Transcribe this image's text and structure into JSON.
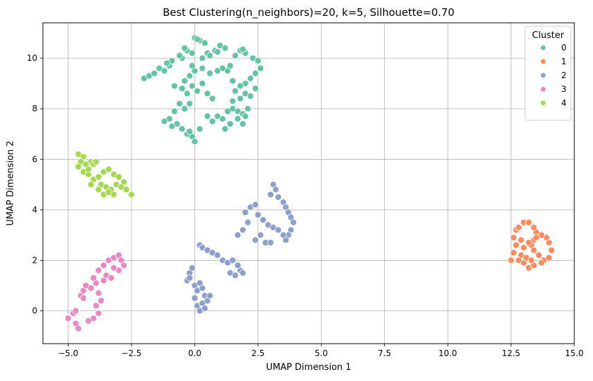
{
  "chart_data": {
    "type": "scatter",
    "title": "Best Clustering(n_neighbors)=20, k=5, Silhouette=0.70",
    "xlabel": "UMAP Dimension 1",
    "ylabel": "UMAP Dimension 2",
    "xlim": [
      -6.0,
      15.0
    ],
    "ylim": [
      -1.3,
      11.4
    ],
    "x_ticks": [
      -5.0,
      -2.5,
      0.0,
      2.5,
      5.0,
      7.5,
      10.0,
      12.5,
      15.0
    ],
    "x_tick_labels": [
      "−5.0",
      "−2.5",
      "0.0",
      "2.5",
      "5.0",
      "7.5",
      "10.0",
      "12.5",
      "15.0"
    ],
    "y_ticks": [
      0,
      2,
      4,
      6,
      8,
      10
    ],
    "y_tick_labels": [
      "0",
      "2",
      "4",
      "6",
      "8",
      "10"
    ],
    "grid": true,
    "legend": {
      "title": "Cluster",
      "placement": "top-right"
    },
    "series": [
      {
        "name": "0",
        "color": "#66c2a5",
        "points": [
          [
            -2.0,
            9.2
          ],
          [
            -1.8,
            9.3
          ],
          [
            -1.6,
            9.4
          ],
          [
            -1.4,
            9.6
          ],
          [
            -1.2,
            9.5
          ],
          [
            -1.0,
            9.7
          ],
          [
            -0.9,
            9.9
          ],
          [
            -1.1,
            9.8
          ],
          [
            -0.5,
            10.0
          ],
          [
            -0.3,
            10.3
          ],
          [
            -0.1,
            10.2
          ],
          [
            0.3,
            10.0
          ],
          [
            0.5,
            10.2
          ],
          [
            -0.4,
            10.4
          ],
          [
            -0.6,
            10.1
          ],
          [
            0.0,
            10.8
          ],
          [
            0.2,
            10.7
          ],
          [
            0.4,
            10.6
          ],
          [
            0.1,
            10.75
          ],
          [
            0.8,
            10.3
          ],
          [
            1.0,
            10.5
          ],
          [
            0.9,
            10.25
          ],
          [
            1.2,
            10.4
          ],
          [
            0.6,
            10.1
          ],
          [
            1.8,
            10.3
          ],
          [
            2.0,
            10.2
          ],
          [
            1.6,
            10.1
          ],
          [
            1.9,
            10.35
          ],
          [
            2.3,
            10.0
          ],
          [
            2.5,
            9.9
          ],
          [
            2.6,
            9.6
          ],
          [
            2.4,
            9.4
          ],
          [
            2.2,
            9.2
          ],
          [
            2.0,
            9.0
          ],
          [
            1.8,
            8.9
          ],
          [
            1.5,
            9.1
          ],
          [
            1.3,
            9.5
          ],
          [
            1.1,
            9.6
          ],
          [
            0.9,
            9.5
          ],
          [
            1.4,
            9.7
          ],
          [
            1.6,
            8.7
          ],
          [
            2.0,
            8.6
          ],
          [
            2.4,
            8.8
          ],
          [
            2.2,
            8.5
          ],
          [
            1.8,
            8.4
          ],
          [
            1.5,
            8.3
          ],
          [
            -0.8,
            8.9
          ],
          [
            -0.5,
            8.8
          ],
          [
            -0.3,
            8.6
          ],
          [
            -0.1,
            8.9
          ],
          [
            -0.4,
            9.1
          ],
          [
            -0.2,
            9.3
          ],
          [
            0.1,
            8.7
          ],
          [
            0.3,
            9.0
          ],
          [
            0.5,
            8.6
          ],
          [
            0.7,
            8.4
          ],
          [
            -0.6,
            8.2
          ],
          [
            -0.4,
            8.0
          ],
          [
            -0.2,
            8.2
          ],
          [
            -0.8,
            7.9
          ],
          [
            -1.0,
            7.6
          ],
          [
            -1.2,
            7.5
          ],
          [
            -0.9,
            7.3
          ],
          [
            -0.7,
            7.4
          ],
          [
            -0.5,
            7.2
          ],
          [
            -0.3,
            7.0
          ],
          [
            -0.1,
            6.9
          ],
          [
            0.0,
            6.7
          ],
          [
            -0.2,
            7.1
          ],
          [
            0.5,
            7.7
          ],
          [
            0.7,
            7.5
          ],
          [
            0.9,
            7.7
          ],
          [
            1.1,
            7.6
          ],
          [
            1.3,
            7.9
          ],
          [
            1.5,
            8.0
          ],
          [
            1.7,
            7.9
          ],
          [
            1.9,
            7.8
          ],
          [
            2.1,
            8.0
          ],
          [
            1.7,
            7.6
          ],
          [
            1.9,
            7.4
          ],
          [
            2.0,
            7.7
          ],
          [
            1.4,
            7.4
          ],
          [
            1.2,
            7.2
          ],
          [
            0.2,
            7.2
          ],
          [
            0.3,
            9.6
          ],
          [
            0.0,
            9.5
          ],
          [
            -0.1,
            9.7
          ],
          [
            0.6,
            9.4
          ]
        ]
      },
      {
        "name": "1",
        "color": "#fc8d62",
        "points": [
          [
            12.5,
            2.0
          ],
          [
            12.6,
            2.3
          ],
          [
            12.7,
            2.6
          ],
          [
            12.6,
            2.9
          ],
          [
            12.7,
            3.2
          ],
          [
            12.8,
            3.3
          ],
          [
            13.0,
            3.5
          ],
          [
            13.2,
            3.5
          ],
          [
            13.4,
            3.3
          ],
          [
            13.5,
            3.1
          ],
          [
            13.4,
            2.8
          ],
          [
            13.3,
            2.6
          ],
          [
            13.4,
            2.4
          ],
          [
            13.6,
            2.2
          ],
          [
            13.8,
            2.0
          ],
          [
            14.0,
            2.1
          ],
          [
            14.1,
            2.4
          ],
          [
            14.0,
            2.7
          ],
          [
            13.9,
            2.9
          ],
          [
            13.7,
            3.0
          ],
          [
            13.5,
            2.9
          ],
          [
            13.2,
            2.7
          ],
          [
            13.0,
            2.5
          ],
          [
            12.9,
            2.2
          ],
          [
            13.0,
            1.9
          ],
          [
            13.2,
            1.7
          ],
          [
            13.4,
            1.8
          ],
          [
            13.1,
            2.1
          ],
          [
            12.8,
            2.0
          ],
          [
            12.9,
            2.8
          ],
          [
            13.3,
            2.0
          ],
          [
            13.7,
            1.9
          ]
        ]
      },
      {
        "name": "2",
        "color": "#8da0cb",
        "points": [
          [
            -0.3,
            1.2
          ],
          [
            -0.2,
            1.5
          ],
          [
            -0.1,
            1.7
          ],
          [
            -0.2,
            1.3
          ],
          [
            0.0,
            1.0
          ],
          [
            0.1,
            0.8
          ],
          [
            0.0,
            0.5
          ],
          [
            0.1,
            0.2
          ],
          [
            0.2,
            0.0
          ],
          [
            0.3,
            0.3
          ],
          [
            0.4,
            0.6
          ],
          [
            0.3,
            0.9
          ],
          [
            0.2,
            1.1
          ],
          [
            0.4,
            0.1
          ],
          [
            0.5,
            0.4
          ],
          [
            0.6,
            0.6
          ],
          [
            0.2,
            2.6
          ],
          [
            0.3,
            2.5
          ],
          [
            0.5,
            2.4
          ],
          [
            0.7,
            2.3
          ],
          [
            0.9,
            2.2
          ],
          [
            1.1,
            2.0
          ],
          [
            1.3,
            1.9
          ],
          [
            1.5,
            2.0
          ],
          [
            1.4,
            1.5
          ],
          [
            1.6,
            1.4
          ],
          [
            1.8,
            1.6
          ],
          [
            1.7,
            1.8
          ],
          [
            1.9,
            1.5
          ],
          [
            1.7,
            3.0
          ],
          [
            1.9,
            3.2
          ],
          [
            2.1,
            3.5
          ],
          [
            2.0,
            3.9
          ],
          [
            2.2,
            4.1
          ],
          [
            2.4,
            4.2
          ],
          [
            2.5,
            3.8
          ],
          [
            2.7,
            3.6
          ],
          [
            2.9,
            3.4
          ],
          [
            3.1,
            3.3
          ],
          [
            3.3,
            3.2
          ],
          [
            2.6,
            3.0
          ],
          [
            2.4,
            2.8
          ],
          [
            2.8,
            2.7
          ],
          [
            3.0,
            2.7
          ],
          [
            3.1,
            5.0
          ],
          [
            3.2,
            4.8
          ],
          [
            3.0,
            4.6
          ],
          [
            3.3,
            4.5
          ],
          [
            3.5,
            4.3
          ],
          [
            3.6,
            4.1
          ],
          [
            3.7,
            3.9
          ],
          [
            3.8,
            3.7
          ],
          [
            3.9,
            3.5
          ],
          [
            3.8,
            3.2
          ],
          [
            3.7,
            3.0
          ],
          [
            3.6,
            2.8
          ],
          [
            3.5,
            3.0
          ]
        ]
      },
      {
        "name": "3",
        "color": "#e78ac3",
        "points": [
          [
            -5.0,
            -0.3
          ],
          [
            -4.8,
            -0.1
          ],
          [
            -4.7,
            -0.5
          ],
          [
            -4.6,
            -0.7
          ],
          [
            -4.7,
            0.0
          ],
          [
            -4.5,
            0.6
          ],
          [
            -4.4,
            0.8
          ],
          [
            -4.3,
            1.0
          ],
          [
            -4.1,
            0.9
          ],
          [
            -3.9,
            1.1
          ],
          [
            -3.8,
            0.7
          ],
          [
            -3.7,
            0.4
          ],
          [
            -3.9,
            0.2
          ],
          [
            -4.0,
            -0.3
          ],
          [
            -4.2,
            -0.4
          ],
          [
            -3.8,
            -0.1
          ],
          [
            -4.0,
            1.3
          ],
          [
            -3.8,
            1.6
          ],
          [
            -3.6,
            1.8
          ],
          [
            -3.4,
            2.0
          ],
          [
            -3.2,
            2.1
          ],
          [
            -3.0,
            2.2
          ],
          [
            -2.9,
            2.0
          ],
          [
            -2.8,
            1.8
          ],
          [
            -3.0,
            1.6
          ],
          [
            -3.2,
            1.7
          ],
          [
            -3.5,
            1.4
          ],
          [
            -3.6,
            1.2
          ],
          [
            -3.3,
            1.3
          ],
          [
            -4.4,
            0.5
          ]
        ]
      },
      {
        "name": "4",
        "color": "#a6d854",
        "points": [
          [
            -4.6,
            6.2
          ],
          [
            -4.4,
            6.1
          ],
          [
            -4.5,
            5.9
          ],
          [
            -4.3,
            5.8
          ],
          [
            -4.1,
            5.9
          ],
          [
            -4.0,
            5.8
          ],
          [
            -3.9,
            5.9
          ],
          [
            -4.6,
            5.7
          ],
          [
            -4.4,
            5.5
          ],
          [
            -4.2,
            5.4
          ],
          [
            -4.0,
            5.2
          ],
          [
            -3.8,
            5.3
          ],
          [
            -3.6,
            5.5
          ],
          [
            -3.4,
            5.6
          ],
          [
            -3.2,
            5.4
          ],
          [
            -3.0,
            5.3
          ],
          [
            -2.8,
            5.1
          ],
          [
            -3.7,
            5.0
          ],
          [
            -3.5,
            4.9
          ],
          [
            -3.3,
            4.8
          ],
          [
            -3.1,
            5.0
          ],
          [
            -2.9,
            4.9
          ],
          [
            -2.7,
            4.8
          ],
          [
            -2.5,
            4.6
          ],
          [
            -3.6,
            4.6
          ],
          [
            -3.4,
            4.7
          ],
          [
            -3.2,
            4.6
          ],
          [
            -4.1,
            5.0
          ],
          [
            -3.8,
            4.8
          ],
          [
            -4.2,
            5.6
          ]
        ]
      }
    ]
  }
}
